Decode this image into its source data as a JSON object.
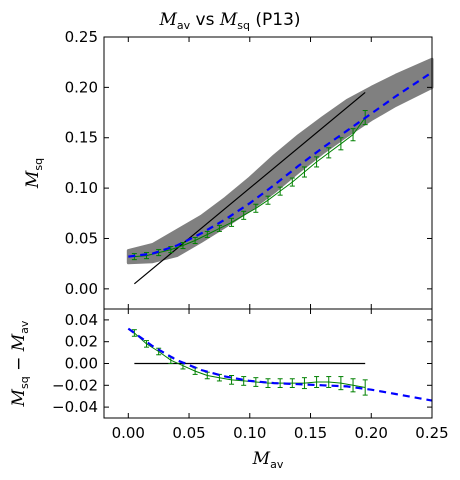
{
  "title": {
    "main": "M",
    "sub": "av",
    "mid": " vs ",
    "main2": "M",
    "sub2": "sq",
    "tail": " (P13)"
  },
  "colors": {
    "scatter": "#808080",
    "fit": "#0000ff",
    "errorbar": "#008000",
    "reference": "#000000"
  },
  "chart_data": [
    {
      "panel": "upper",
      "type": "scatter",
      "xlabel": {
        "main": "M",
        "sub": "av"
      },
      "ylabel": {
        "main": "M",
        "sub": "sq"
      },
      "xlim": [
        -0.02,
        0.25
      ],
      "ylim": [
        -0.02,
        0.25
      ],
      "xticks": [
        0.0,
        0.05,
        0.1,
        0.15,
        0.2,
        0.25
      ],
      "xticklabels": [
        "",
        "",
        "",
        "",
        "",
        ""
      ],
      "yticks": [
        0.0,
        0.05,
        0.1,
        0.15,
        0.2,
        0.25
      ],
      "yticklabels": [
        "0.00",
        "0.05",
        "0.10",
        "0.15",
        "0.20",
        "0.25"
      ],
      "scatter_band": {
        "x": [
          0.0,
          0.02,
          0.04,
          0.06,
          0.08,
          0.1,
          0.12,
          0.14,
          0.16,
          0.18,
          0.2,
          0.22,
          0.25
        ],
        "y_low": [
          0.026,
          0.027,
          0.033,
          0.047,
          0.062,
          0.078,
          0.096,
          0.116,
          0.135,
          0.152,
          0.168,
          0.182,
          0.2
        ],
        "y_high": [
          0.038,
          0.044,
          0.058,
          0.072,
          0.09,
          0.11,
          0.132,
          0.152,
          0.17,
          0.187,
          0.2,
          0.212,
          0.228
        ]
      },
      "fit_curve": {
        "name": "fit",
        "x": [
          0.0,
          0.02,
          0.04,
          0.06,
          0.08,
          0.1,
          0.12,
          0.14,
          0.16,
          0.18,
          0.2,
          0.22,
          0.25
        ],
        "y": [
          0.032,
          0.035,
          0.043,
          0.055,
          0.069,
          0.085,
          0.103,
          0.122,
          0.14,
          0.157,
          0.174,
          0.191,
          0.215
        ]
      },
      "errorbars": {
        "x": [
          0.005,
          0.015,
          0.025,
          0.035,
          0.045,
          0.055,
          0.065,
          0.075,
          0.085,
          0.095,
          0.105,
          0.115,
          0.125,
          0.135,
          0.145,
          0.155,
          0.165,
          0.175,
          0.185,
          0.195
        ],
        "y": [
          0.032,
          0.033,
          0.036,
          0.039,
          0.043,
          0.048,
          0.054,
          0.06,
          0.066,
          0.073,
          0.08,
          0.088,
          0.097,
          0.106,
          0.116,
          0.126,
          0.135,
          0.144,
          0.153,
          0.17
        ],
        "err": [
          0.003,
          0.003,
          0.003,
          0.003,
          0.003,
          0.003,
          0.003,
          0.003,
          0.004,
          0.004,
          0.004,
          0.004,
          0.004,
          0.004,
          0.005,
          0.005,
          0.005,
          0.006,
          0.006,
          0.007
        ]
      },
      "reference_line": {
        "x": [
          0.005,
          0.195
        ],
        "y": [
          0.005,
          0.195
        ]
      }
    },
    {
      "panel": "lower",
      "type": "line",
      "xlabel": {
        "main": "M",
        "sub": "av"
      },
      "ylabel": {
        "main": "M",
        "sub": "sq",
        "minus": " − ",
        "main2": "M",
        "sub2": "av"
      },
      "xlim": [
        -0.02,
        0.25
      ],
      "ylim": [
        -0.05,
        0.05
      ],
      "xticks": [
        0.0,
        0.05,
        0.1,
        0.15,
        0.2,
        0.25
      ],
      "xticklabels": [
        "0.00",
        "0.05",
        "0.10",
        "0.15",
        "0.20",
        "0.25"
      ],
      "yticks": [
        -0.04,
        -0.02,
        0.0,
        0.02,
        0.04
      ],
      "yticklabels": [
        "−0.04",
        "−0.02",
        "0.00",
        "0.02",
        "0.04"
      ],
      "fit_curve": {
        "name": "fit",
        "x": [
          0.0,
          0.02,
          0.04,
          0.06,
          0.08,
          0.1,
          0.12,
          0.14,
          0.16,
          0.18,
          0.2,
          0.22,
          0.25
        ],
        "y": [
          0.032,
          0.016,
          0.003,
          -0.006,
          -0.012,
          -0.016,
          -0.018,
          -0.019,
          -0.02,
          -0.021,
          -0.024,
          -0.028,
          -0.034
        ]
      },
      "errorbars": {
        "x": [
          0.005,
          0.015,
          0.025,
          0.035,
          0.045,
          0.055,
          0.065,
          0.075,
          0.085,
          0.095,
          0.105,
          0.115,
          0.125,
          0.135,
          0.145,
          0.155,
          0.165,
          0.175,
          0.185,
          0.195
        ],
        "y": [
          0.028,
          0.018,
          0.011,
          0.003,
          -0.002,
          -0.007,
          -0.011,
          -0.013,
          -0.015,
          -0.016,
          -0.017,
          -0.018,
          -0.018,
          -0.018,
          -0.018,
          -0.017,
          -0.017,
          -0.018,
          -0.02,
          -0.022
        ],
        "err": [
          0.003,
          0.003,
          0.003,
          0.003,
          0.003,
          0.003,
          0.003,
          0.003,
          0.004,
          0.004,
          0.004,
          0.004,
          0.004,
          0.004,
          0.005,
          0.005,
          0.005,
          0.006,
          0.006,
          0.007
        ]
      },
      "reference_line": {
        "x": [
          0.005,
          0.195
        ],
        "y": [
          0.0,
          0.0
        ]
      }
    }
  ]
}
